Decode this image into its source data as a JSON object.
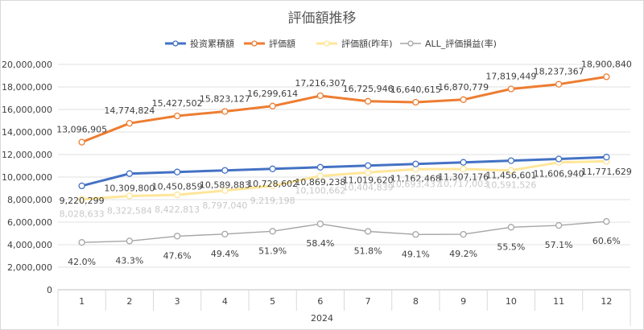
{
  "chart_data": {
    "type": "line",
    "title": "評価額推移",
    "xlabel": "2024",
    "ylabel": "",
    "ylim": [
      0,
      20000000
    ],
    "ytick_step": 2000000,
    "yticks": [
      "0",
      "2,000,000",
      "4,000,000",
      "6,000,000",
      "8,000,000",
      "10,000,000",
      "12,000,000",
      "14,000,000",
      "16,000,000",
      "18,000,000",
      "20,000,000"
    ],
    "categories": [
      "1",
      "2",
      "3",
      "4",
      "5",
      "6",
      "7",
      "8",
      "9",
      "10",
      "11",
      "12"
    ],
    "legend_position": "top",
    "grid": true,
    "series": [
      {
        "name": "投资累積額",
        "color": "#4472C4",
        "values": [
          9220299,
          10309800,
          10450859,
          10589883,
          10728602,
          10869238,
          11019620,
          11162468,
          11307176,
          11456601,
          11606940,
          11771629
        ],
        "labels": [
          "9,220,299",
          "10,309,800",
          "10,450,859",
          "10,589,883",
          "10,728,602",
          "10,869,238",
          "11,019,620",
          "11,162,468",
          "11,307,176",
          "11,456,601",
          "11,606,940",
          "11,771,629"
        ]
      },
      {
        "name": "評価額",
        "color": "#ED7D31",
        "values": [
          13096905,
          14774824,
          15427502,
          15823127,
          16299614,
          17216307,
          16725946,
          16640615,
          16870779,
          17819449,
          18237367,
          18900840
        ],
        "labels": [
          "13,096,905",
          "14,774,824",
          "15,427,502",
          "15,823,127",
          "16,299,614",
          "17,216,307",
          "16,725,946",
          "16,640,615",
          "16,870,779",
          "17,819,449",
          "18,237,367",
          "18,900,840"
        ]
      },
      {
        "name": "評価額(昨年)",
        "color": "#FFE699",
        "values": [
          8028633,
          8322584,
          8422813,
          8797040,
          9219198,
          10100662,
          10404839,
          10693437,
          10717003,
          10591526,
          11300000,
          11400000
        ],
        "labels": [
          "8,028,633",
          "8,322,584",
          "8,422,813",
          "8,797,040",
          "9,219,198",
          "10,100,662",
          "10,404,839",
          "10,693,437",
          "10,717,003",
          "10,591,526",
          "",
          ""
        ]
      },
      {
        "name": "ALL_評価損益(率)",
        "color": "#A5A5A5",
        "values": [
          42.0,
          43.3,
          47.6,
          49.4,
          51.9,
          58.4,
          51.8,
          49.1,
          49.2,
          55.5,
          57.1,
          60.6
        ],
        "plot_scale": 100000,
        "labels": [
          "42.0%",
          "43.3%",
          "47.6%",
          "49.4%",
          "51.9%",
          "58.4%",
          "51.8%",
          "49.1%",
          "49.2%",
          "55.5%",
          "57.1%",
          "60.6%"
        ]
      }
    ]
  }
}
